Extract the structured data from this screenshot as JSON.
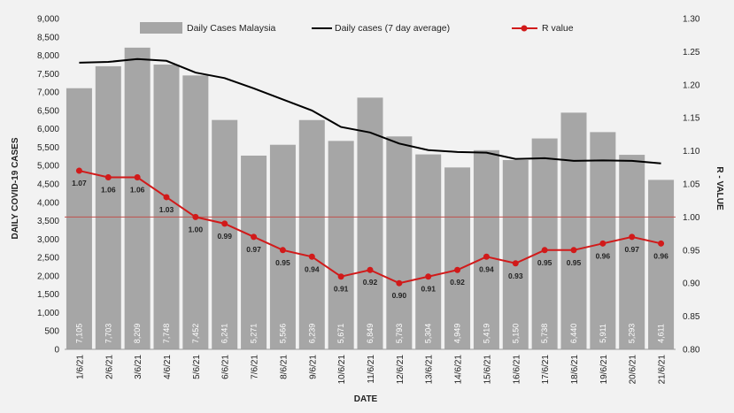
{
  "chart_data": {
    "type": "bar",
    "title": "",
    "xlabel": "DATE",
    "ylabel": "DAILY COVID-19 CASES",
    "y2label": "R - VALUE",
    "ylim": [
      0,
      9000
    ],
    "y2lim": [
      0.8,
      1.3
    ],
    "y_ticks": [
      "0",
      "500",
      "1,000",
      "1,500",
      "2,000",
      "2,500",
      "3,000",
      "3,500",
      "4,000",
      "4,500",
      "5,000",
      "5,500",
      "6,000",
      "6,500",
      "7,000",
      "7,500",
      "8,000",
      "8,500",
      "9,000"
    ],
    "y2_ticks": [
      "0.80",
      "0.85",
      "0.90",
      "0.95",
      "1.00",
      "1.05",
      "1.10",
      "1.15",
      "1.20",
      "1.25",
      "1.30"
    ],
    "categories": [
      "1/6/21",
      "2/6/21",
      "3/6/21",
      "4/6/21",
      "5/6/21",
      "6/6/21",
      "7/6/21",
      "8/6/21",
      "9/6/21",
      "10/6/21",
      "11/6/21",
      "12/6/21",
      "13/6/21",
      "14/6/21",
      "15/6/21",
      "16/6/21",
      "17/6/21",
      "18/6/21",
      "19/6/21",
      "20/6/21",
      "21/6/21"
    ],
    "series": [
      {
        "name": "Daily Cases Malaysia",
        "type": "bar",
        "axis": "left",
        "color": "#a6a6a6",
        "values": [
          7105,
          7703,
          8209,
          7748,
          7452,
          6241,
          5271,
          5566,
          6239,
          5671,
          6849,
          5793,
          5304,
          4949,
          5419,
          5150,
          5738,
          6440,
          5911,
          5293,
          4611
        ],
        "labels": [
          "7,105",
          "7,703",
          "8,209",
          "7,748",
          "7,452",
          "6,241",
          "5,271",
          "5,566",
          "6,239",
          "5,671",
          "6,849",
          "5,793",
          "5,304",
          "4,949",
          "5,419",
          "5,150",
          "5,738",
          "6,440",
          "5,911",
          "5,293",
          "4,611"
        ]
      },
      {
        "name": "Daily cases (7 day average)",
        "type": "line",
        "axis": "left",
        "color": "#000000",
        "values": [
          7800,
          7820,
          7900,
          7850,
          7530,
          7380,
          7100,
          6800,
          6500,
          6050,
          5900,
          5600,
          5420,
          5370,
          5350,
          5180,
          5200,
          5130,
          5140,
          5130,
          5060
        ]
      },
      {
        "name": "R value",
        "type": "line",
        "axis": "right",
        "color": "#d11a1a",
        "values": [
          1.07,
          1.06,
          1.06,
          1.03,
          1.0,
          0.99,
          0.97,
          0.95,
          0.94,
          0.91,
          0.92,
          0.9,
          0.91,
          0.92,
          0.94,
          0.93,
          0.95,
          0.95,
          0.96,
          0.97,
          0.96
        ],
        "labels": [
          "1.07",
          "1.06",
          "1.06",
          "1.03",
          "1.00",
          "0.99",
          "0.97",
          "0.95",
          "0.94",
          "0.91",
          "0.92",
          "0.90",
          "0.91",
          "0.92",
          "0.94",
          "0.93",
          "0.95",
          "0.95",
          "0.96",
          "0.97",
          "0.96"
        ]
      }
    ],
    "reference_line": {
      "axis": "right",
      "value": 1.0,
      "color": "#c0504d"
    },
    "legend_position": "top",
    "grid": false
  }
}
